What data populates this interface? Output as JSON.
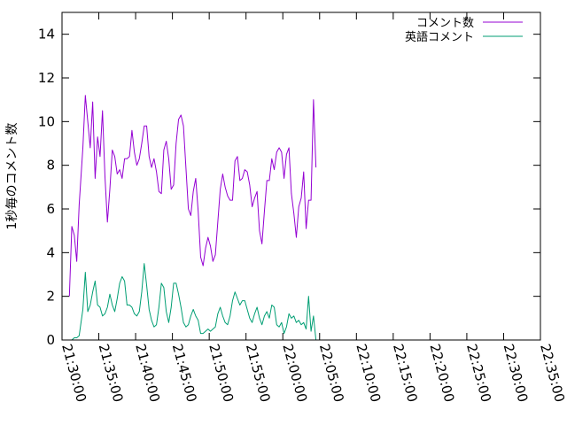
{
  "chart_data": {
    "type": "line",
    "title": "",
    "xlabel": "",
    "ylabel": "1秒毎のコメント数",
    "xlim": [
      "21:30:00",
      "22:35:00"
    ],
    "ylim": [
      0,
      15
    ],
    "y_ticks": [
      "0",
      "2",
      "4",
      "6",
      "8",
      "10",
      "12",
      "14"
    ],
    "x_ticks": [
      "21:30:00",
      "21:35:00",
      "21:40:00",
      "21:45:00",
      "21:50:00",
      "21:55:00",
      "22:00:00",
      "22:05:00",
      "22:10:00",
      "22:15:00",
      "22:20:00",
      "22:25:00",
      "22:30:00",
      "22:35:00"
    ],
    "grid": false,
    "legend_position": "top-right",
    "series": [
      {
        "name": "コメント数",
        "color": "#9400d3",
        "points": [
          [
            "21:31:00",
            2.0
          ],
          [
            "21:31:20",
            5.2
          ],
          [
            "21:31:40",
            4.8
          ],
          [
            "21:32:00",
            3.6
          ],
          [
            "21:32:20",
            6.2
          ],
          [
            "21:32:50",
            8.8
          ],
          [
            "21:33:10",
            11.2
          ],
          [
            "21:33:30",
            10.0
          ],
          [
            "21:33:50",
            8.8
          ],
          [
            "21:34:10",
            10.9
          ],
          [
            "21:34:30",
            7.4
          ],
          [
            "21:34:50",
            9.3
          ],
          [
            "21:35:10",
            8.4
          ],
          [
            "21:35:30",
            10.5
          ],
          [
            "21:35:50",
            7.5
          ],
          [
            "21:36:10",
            5.4
          ],
          [
            "21:36:30",
            6.9
          ],
          [
            "21:36:50",
            8.7
          ],
          [
            "21:37:10",
            8.4
          ],
          [
            "21:37:30",
            7.6
          ],
          [
            "21:37:50",
            7.8
          ],
          [
            "21:38:10",
            7.4
          ],
          [
            "21:38:30",
            8.3
          ],
          [
            "21:38:50",
            8.3
          ],
          [
            "21:39:10",
            8.4
          ],
          [
            "21:39:30",
            9.6
          ],
          [
            "21:39:50",
            8.6
          ],
          [
            "21:40:10",
            8.0
          ],
          [
            "21:40:30",
            8.3
          ],
          [
            "21:40:50",
            9.0
          ],
          [
            "21:41:10",
            9.8
          ],
          [
            "21:41:30",
            9.8
          ],
          [
            "21:41:50",
            8.4
          ],
          [
            "21:42:10",
            7.9
          ],
          [
            "21:42:30",
            8.3
          ],
          [
            "21:42:50",
            7.7
          ],
          [
            "21:43:10",
            6.8
          ],
          [
            "21:43:30",
            6.7
          ],
          [
            "21:43:50",
            8.7
          ],
          [
            "21:44:10",
            9.1
          ],
          [
            "21:44:30",
            8.3
          ],
          [
            "21:44:50",
            6.9
          ],
          [
            "21:45:10",
            7.1
          ],
          [
            "21:45:30",
            9.0
          ],
          [
            "21:45:50",
            10.1
          ],
          [
            "21:46:10",
            10.3
          ],
          [
            "21:46:30",
            9.8
          ],
          [
            "21:46:50",
            7.9
          ],
          [
            "21:47:10",
            6.0
          ],
          [
            "21:47:30",
            5.7
          ],
          [
            "21:47:50",
            6.8
          ],
          [
            "21:48:10",
            7.4
          ],
          [
            "21:48:30",
            5.9
          ],
          [
            "21:48:50",
            3.8
          ],
          [
            "21:49:10",
            3.4
          ],
          [
            "21:49:30",
            4.2
          ],
          [
            "21:49:50",
            4.7
          ],
          [
            "21:50:10",
            4.3
          ],
          [
            "21:50:30",
            3.6
          ],
          [
            "21:50:50",
            3.9
          ],
          [
            "21:51:10",
            5.4
          ],
          [
            "21:51:30",
            6.9
          ],
          [
            "21:51:50",
            7.6
          ],
          [
            "21:52:10",
            7.0
          ],
          [
            "21:52:30",
            6.6
          ],
          [
            "21:52:50",
            6.4
          ],
          [
            "21:53:10",
            6.4
          ],
          [
            "21:53:30",
            8.2
          ],
          [
            "21:53:50",
            8.4
          ],
          [
            "21:54:10",
            7.3
          ],
          [
            "21:54:30",
            7.4
          ],
          [
            "21:54:50",
            7.8
          ],
          [
            "21:55:10",
            7.7
          ],
          [
            "21:55:30",
            7.1
          ],
          [
            "21:55:50",
            6.1
          ],
          [
            "21:56:10",
            6.5
          ],
          [
            "21:56:30",
            6.8
          ],
          [
            "21:56:50",
            5.0
          ],
          [
            "21:57:10",
            4.4
          ],
          [
            "21:57:30",
            5.9
          ],
          [
            "21:57:50",
            7.3
          ],
          [
            "21:58:10",
            7.3
          ],
          [
            "21:58:30",
            8.3
          ],
          [
            "21:58:50",
            7.8
          ],
          [
            "21:59:10",
            8.6
          ],
          [
            "21:59:30",
            8.8
          ],
          [
            "21:59:50",
            8.6
          ],
          [
            "22:00:10",
            7.4
          ],
          [
            "22:00:30",
            8.5
          ],
          [
            "22:00:50",
            8.8
          ],
          [
            "22:01:10",
            6.7
          ],
          [
            "22:01:30",
            5.8
          ],
          [
            "22:01:50",
            4.7
          ],
          [
            "22:02:10",
            6.1
          ],
          [
            "22:02:30",
            6.5
          ],
          [
            "22:02:50",
            7.7
          ],
          [
            "22:03:10",
            5.1
          ],
          [
            "22:03:30",
            6.4
          ],
          [
            "22:03:50",
            6.4
          ],
          [
            "22:04:10",
            11.0
          ],
          [
            "22:04:30",
            7.9
          ]
        ]
      },
      {
        "name": "英語コメント",
        "color": "#009e73",
        "points": [
          [
            "21:31:00",
            0.0
          ],
          [
            "21:31:20",
            0.0
          ],
          [
            "21:31:40",
            0.1
          ],
          [
            "21:32:00",
            0.1
          ],
          [
            "21:32:20",
            0.2
          ],
          [
            "21:32:50",
            1.4
          ],
          [
            "21:33:10",
            3.1
          ],
          [
            "21:33:30",
            1.3
          ],
          [
            "21:33:50",
            1.6
          ],
          [
            "21:34:10",
            2.2
          ],
          [
            "21:34:30",
            2.7
          ],
          [
            "21:34:50",
            1.6
          ],
          [
            "21:35:10",
            1.5
          ],
          [
            "21:35:30",
            1.1
          ],
          [
            "21:35:50",
            1.2
          ],
          [
            "21:36:10",
            1.5
          ],
          [
            "21:36:30",
            2.1
          ],
          [
            "21:36:50",
            1.6
          ],
          [
            "21:37:10",
            1.3
          ],
          [
            "21:37:30",
            1.9
          ],
          [
            "21:37:50",
            2.6
          ],
          [
            "21:38:10",
            2.9
          ],
          [
            "21:38:30",
            2.7
          ],
          [
            "21:38:50",
            1.6
          ],
          [
            "21:39:10",
            1.6
          ],
          [
            "21:39:30",
            1.5
          ],
          [
            "21:39:50",
            1.2
          ],
          [
            "21:40:10",
            1.1
          ],
          [
            "21:40:30",
            1.3
          ],
          [
            "21:40:50",
            2.2
          ],
          [
            "21:41:10",
            3.5
          ],
          [
            "21:41:30",
            2.5
          ],
          [
            "21:41:50",
            1.4
          ],
          [
            "21:42:10",
            0.9
          ],
          [
            "21:42:30",
            0.6
          ],
          [
            "21:42:50",
            0.7
          ],
          [
            "21:43:10",
            1.5
          ],
          [
            "21:43:30",
            2.6
          ],
          [
            "21:43:50",
            2.4
          ],
          [
            "21:44:10",
            1.3
          ],
          [
            "21:44:30",
            0.8
          ],
          [
            "21:44:50",
            1.5
          ],
          [
            "21:45:10",
            2.6
          ],
          [
            "21:45:30",
            2.6
          ],
          [
            "21:45:50",
            2.1
          ],
          [
            "21:46:10",
            1.5
          ],
          [
            "21:46:30",
            0.8
          ],
          [
            "21:46:50",
            0.6
          ],
          [
            "21:47:10",
            0.7
          ],
          [
            "21:47:30",
            1.1
          ],
          [
            "21:47:50",
            1.4
          ],
          [
            "21:48:10",
            1.1
          ],
          [
            "21:48:30",
            0.9
          ],
          [
            "21:48:50",
            0.3
          ],
          [
            "21:49:10",
            0.3
          ],
          [
            "21:49:30",
            0.4
          ],
          [
            "21:49:50",
            0.5
          ],
          [
            "21:50:10",
            0.4
          ],
          [
            "21:50:30",
            0.5
          ],
          [
            "21:50:50",
            0.6
          ],
          [
            "21:51:10",
            1.2
          ],
          [
            "21:51:30",
            1.5
          ],
          [
            "21:51:50",
            1.1
          ],
          [
            "21:52:10",
            0.8
          ],
          [
            "21:52:30",
            0.7
          ],
          [
            "21:52:50",
            1.1
          ],
          [
            "21:53:10",
            1.8
          ],
          [
            "21:53:30",
            2.2
          ],
          [
            "21:53:50",
            1.9
          ],
          [
            "21:54:10",
            1.6
          ],
          [
            "21:54:30",
            1.8
          ],
          [
            "21:54:50",
            1.8
          ],
          [
            "21:55:10",
            1.4
          ],
          [
            "21:55:30",
            1.0
          ],
          [
            "21:55:50",
            0.8
          ],
          [
            "21:56:10",
            1.2
          ],
          [
            "21:56:30",
            1.5
          ],
          [
            "21:56:50",
            1.0
          ],
          [
            "21:57:10",
            0.7
          ],
          [
            "21:57:30",
            1.1
          ],
          [
            "21:57:50",
            1.3
          ],
          [
            "21:58:10",
            1.0
          ],
          [
            "21:58:30",
            1.6
          ],
          [
            "21:58:50",
            1.5
          ],
          [
            "21:59:10",
            0.7
          ],
          [
            "21:59:30",
            0.6
          ],
          [
            "21:59:50",
            0.8
          ],
          [
            "22:00:10",
            0.3
          ],
          [
            "22:00:30",
            0.6
          ],
          [
            "22:00:50",
            1.2
          ],
          [
            "22:01:10",
            1.0
          ],
          [
            "22:01:30",
            1.1
          ],
          [
            "22:01:50",
            0.8
          ],
          [
            "22:02:10",
            0.9
          ],
          [
            "22:02:30",
            0.7
          ],
          [
            "22:02:50",
            0.8
          ],
          [
            "22:03:10",
            0.5
          ],
          [
            "22:03:30",
            2.0
          ],
          [
            "22:03:50",
            0.4
          ],
          [
            "22:04:10",
            1.1
          ],
          [
            "22:04:30",
            0.0
          ]
        ]
      }
    ]
  }
}
